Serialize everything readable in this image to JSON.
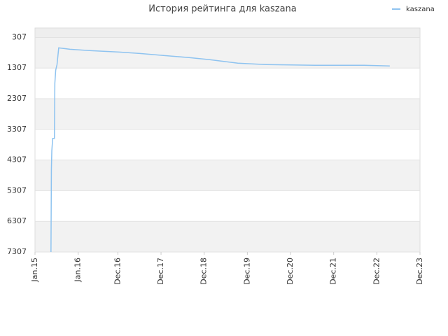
{
  "chart_data": {
    "type": "line",
    "title": "История рейтинга для kaszana",
    "x": [
      15.37,
      15.38,
      15.39,
      15.41,
      15.45,
      15.46,
      15.48,
      15.51,
      15.55,
      15.81,
      16.3,
      16.95,
      17.43,
      18.0,
      18.57,
      19.05,
      19.7,
      20.35,
      21.49,
      22.63,
      23.22
    ],
    "series": [
      {
        "name": "kaszana",
        "color": "#8ec3f0",
        "values": [
          7307,
          4600,
          4000,
          3602,
          3602,
          1800,
          1375,
          1193,
          648,
          693,
          739,
          784,
          830,
          898,
          966,
          1034,
          1148,
          1193,
          1216,
          1216,
          1239
        ]
      }
    ],
    "ylim": [
      7307,
      0
    ],
    "yticks": [
      307,
      1307,
      2307,
      3307,
      4307,
      5307,
      6307,
      7307
    ],
    "xlim": [
      15,
      23.92
    ],
    "xticks": [
      {
        "value": 15,
        "label": "Jan.15"
      },
      {
        "value": 16,
        "label": "Jan.16"
      },
      {
        "value": 16.92,
        "label": "Dec.16"
      },
      {
        "value": 17.92,
        "label": "Dec.17"
      },
      {
        "value": 18.92,
        "label": "Dec.18"
      },
      {
        "value": 19.92,
        "label": "Dec.19"
      },
      {
        "value": 20.92,
        "label": "Dec.20"
      },
      {
        "value": 21.92,
        "label": "Dec.21"
      },
      {
        "value": 22.92,
        "label": "Dec.22"
      },
      {
        "value": 23.92,
        "label": "Dec.23"
      }
    ],
    "grid": true,
    "legend": "top-right"
  }
}
